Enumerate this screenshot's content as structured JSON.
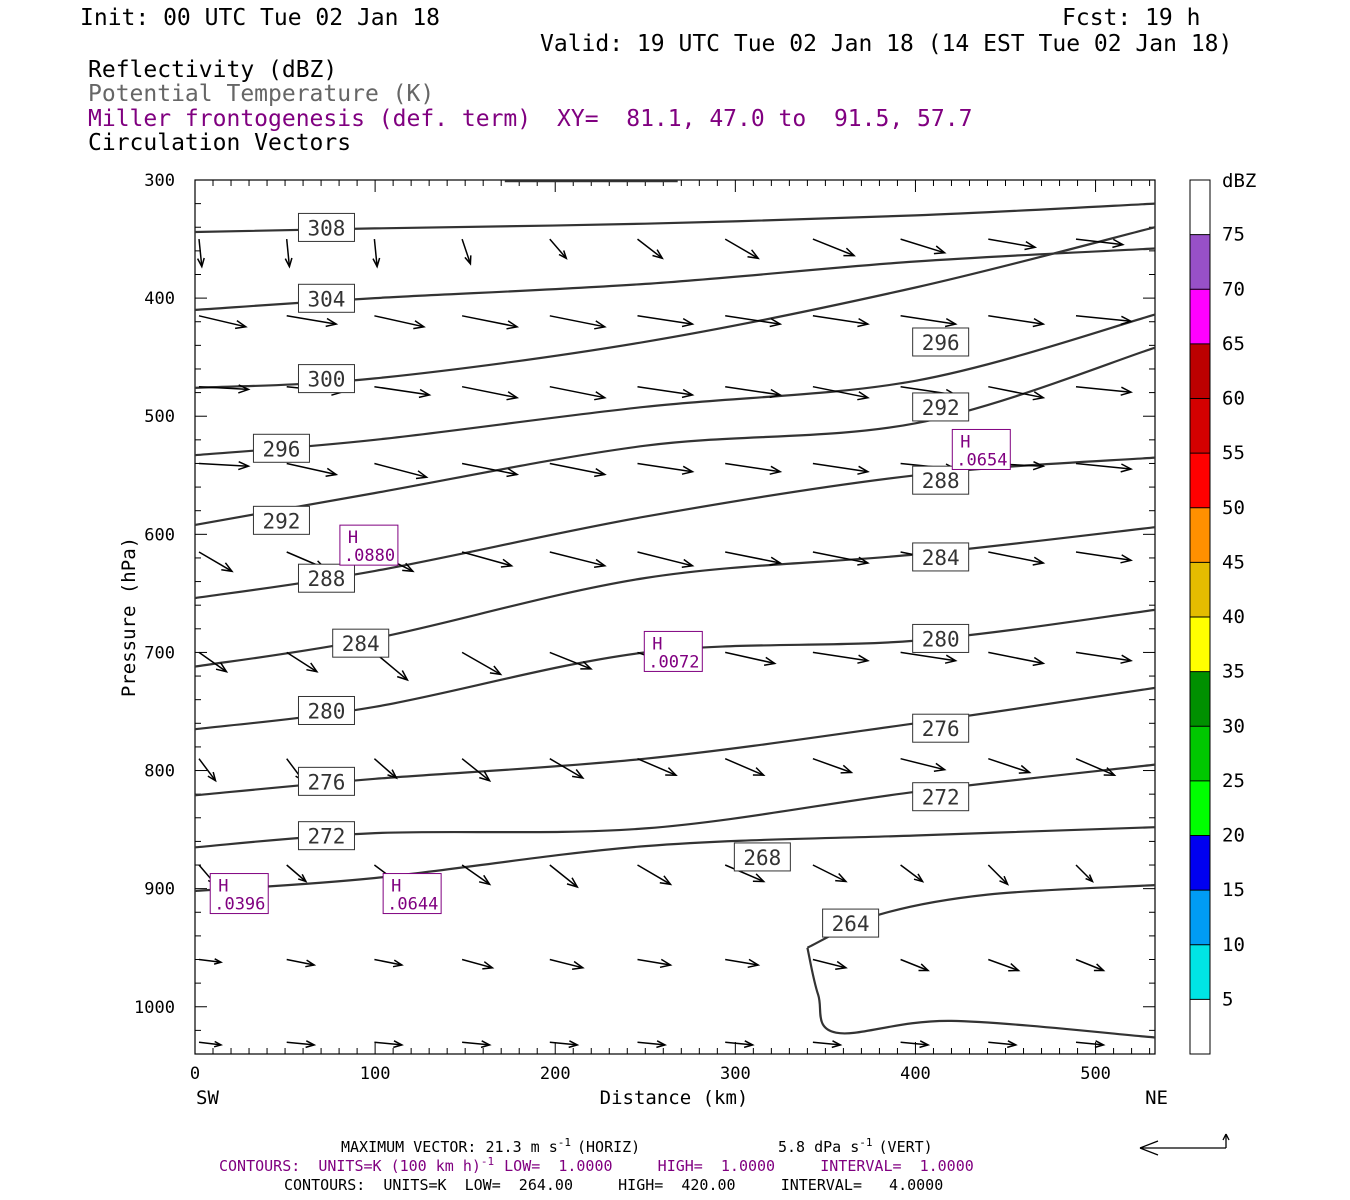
{
  "header": {
    "init": "Init: 00 UTC Tue 02 Jan 18",
    "fcst": "Fcst:   19 h",
    "valid": "Valid: 19 UTC Tue 02 Jan 18 (14 EST Tue 02 Jan 18)",
    "fields": [
      {
        "text": "Reflectivity (dBZ)",
        "color": "#000000"
      },
      {
        "text": "Potential Temperature (K)",
        "color": "#666666"
      },
      {
        "text": "Miller frontogenesis (def. term)",
        "color": "#800080"
      },
      {
        "text": "Circulation Vectors",
        "color": "#000000"
      }
    ],
    "xy": "XY=  81.1, 47.0 to  91.5, 57.7"
  },
  "footer": {
    "max_vector_prefix": "MAXIMUM VECTOR:  21.3 m s",
    "max_vector_horiz": "(HORIZ)",
    "max_vector_vert_prefix": "5.8 dPa s",
    "max_vector_vert": "(VERT)",
    "sup_neg1": "-1",
    "contours1_prefix": "CONTOURS:  UNITS=K (100 km h)",
    "contours1_rest": "LOW=  1.0000     HIGH=  1.0000     INTERVAL=  1.0000",
    "contours2": "CONTOURS:  UNITS=K  LOW=  264.00     HIGH=  420.00     INTERVAL=   4.0000"
  },
  "chart_data": {
    "type": "line",
    "title": "Reflectivity (dBZ), Potential Temperature (K), Miller frontogenesis (def. term), Circulation Vectors",
    "xlabel": "Distance (km)",
    "ylabel": "Pressure (hPa)",
    "x_end_labels": {
      "left": "SW",
      "right": "NE"
    },
    "xlim": [
      0,
      533
    ],
    "ylim": [
      300,
      1040
    ],
    "x_ticks": [
      0,
      100,
      200,
      300,
      400,
      500
    ],
    "y_ticks": [
      300,
      400,
      500,
      600,
      700,
      800,
      900,
      1000
    ],
    "grid": false,
    "isentropes": [
      {
        "theta": 308,
        "points": [
          [
            0,
            344
          ],
          [
            100,
            341
          ],
          [
            250,
            337
          ],
          [
            400,
            330
          ],
          [
            533,
            320
          ]
        ],
        "labels": [
          [
            73,
            341
          ]
        ]
      },
      {
        "theta": 304,
        "points": [
          [
            0,
            410
          ],
          [
            100,
            400
          ],
          [
            250,
            388
          ],
          [
            400,
            369
          ],
          [
            533,
            358
          ]
        ],
        "labels": [
          [
            73,
            401
          ]
        ]
      },
      {
        "theta": 300,
        "points": [
          [
            0,
            476
          ],
          [
            100,
            468
          ],
          [
            250,
            437
          ],
          [
            400,
            391
          ],
          [
            533,
            340
          ]
        ],
        "labels": [
          [
            73,
            469
          ]
        ]
      },
      {
        "theta": 296,
        "points": [
          [
            0,
            533
          ],
          [
            100,
            520
          ],
          [
            250,
            492
          ],
          [
            400,
            470
          ],
          [
            533,
            414
          ]
        ],
        "labels": [
          [
            48,
            528
          ],
          [
            414,
            438
          ]
        ]
      },
      {
        "theta": 292,
        "points": [
          [
            0,
            592
          ],
          [
            100,
            565
          ],
          [
            250,
            525
          ],
          [
            400,
            506
          ],
          [
            533,
            442
          ]
        ],
        "labels": [
          [
            48,
            589
          ],
          [
            414,
            493
          ]
        ]
      },
      {
        "theta": 288,
        "points": [
          [
            0,
            654
          ],
          [
            100,
            631
          ],
          [
            250,
            585
          ],
          [
            400,
            550
          ],
          [
            533,
            535
          ]
        ],
        "labels": [
          [
            73,
            638
          ],
          [
            414,
            555
          ]
        ]
      },
      {
        "theta": 284,
        "points": [
          [
            0,
            712
          ],
          [
            100,
            688
          ],
          [
            250,
            637
          ],
          [
            400,
            617
          ],
          [
            533,
            594
          ]
        ],
        "labels": [
          [
            92,
            693
          ],
          [
            414,
            620
          ]
        ]
      },
      {
        "theta": 280,
        "points": [
          [
            0,
            765
          ],
          [
            100,
            746
          ],
          [
            250,
            700
          ],
          [
            400,
            690
          ],
          [
            533,
            664
          ]
        ],
        "labels": [
          [
            73,
            750
          ],
          [
            414,
            689
          ]
        ]
      },
      {
        "theta": 276,
        "points": [
          [
            0,
            821
          ],
          [
            100,
            807
          ],
          [
            250,
            790
          ],
          [
            400,
            760
          ],
          [
            533,
            730
          ]
        ],
        "labels": [
          [
            73,
            810
          ],
          [
            414,
            765
          ]
        ]
      },
      {
        "theta": 272,
        "points": [
          [
            0,
            865
          ],
          [
            100,
            853
          ],
          [
            250,
            849
          ],
          [
            400,
            818
          ],
          [
            533,
            795
          ]
        ],
        "labels": [
          [
            73,
            856
          ],
          [
            414,
            823
          ]
        ]
      },
      {
        "theta": 268,
        "points": [
          [
            0,
            902
          ],
          [
            100,
            891
          ],
          [
            250,
            864
          ],
          [
            400,
            855
          ],
          [
            533,
            848
          ]
        ],
        "labels": [
          [
            315,
            874
          ]
        ]
      },
      {
        "theta": 264,
        "points": [
          [
            340,
            950
          ],
          [
            380,
            922
          ],
          [
            440,
            905
          ],
          [
            533,
            897
          ]
        ],
        "labels": [
          [
            364,
            930
          ]
        ]
      },
      {
        "theta": 264,
        "points": [
          [
            340,
            950
          ],
          [
            346,
            990
          ],
          [
            356,
            1022
          ],
          [
            420,
            1012
          ],
          [
            533,
            1026
          ]
        ],
        "labels": []
      }
    ],
    "frontogenesis_highs": [
      {
        "label": "H",
        "value": ".0880",
        "x": 96,
        "y": 610
      },
      {
        "label": "H",
        "value": ".0654",
        "x": 436,
        "y": 529
      },
      {
        "label": "H",
        "value": ".0072",
        "x": 265,
        "y": 700
      },
      {
        "label": "H",
        "value": ".0396",
        "x": 24,
        "y": 905
      },
      {
        "label": "H",
        "value": ".0644",
        "x": 120,
        "y": 905
      }
    ],
    "colorbar": {
      "title": "dBZ",
      "levels": [
        5,
        10,
        15,
        20,
        25,
        30,
        35,
        40,
        45,
        50,
        55,
        60,
        65,
        70,
        75
      ],
      "colors": [
        "#ffffff",
        "#00e4e4",
        "#009cf4",
        "#0000f0",
        "#00ff00",
        "#00c800",
        "#009000",
        "#ffff00",
        "#e4bc00",
        "#ff9000",
        "#ff0000",
        "#d40000",
        "#bc0000",
        "#ff00ff",
        "#9850c8",
        "#ffffff"
      ]
    },
    "vector_rows": [
      {
        "p": 350,
        "comps": [
          [
            0.05,
            0.5
          ],
          [
            0.05,
            0.5
          ],
          [
            0.05,
            0.5
          ],
          [
            0.15,
            0.45
          ],
          [
            0.3,
            0.35
          ],
          [
            0.45,
            0.35
          ],
          [
            0.6,
            0.35
          ],
          [
            0.75,
            0.3
          ],
          [
            0.8,
            0.25
          ],
          [
            0.85,
            0.15
          ],
          [
            0.85,
            0.1
          ]
        ]
      },
      {
        "p": 415,
        "comps": [
          [
            0.85,
            0.2
          ],
          [
            0.9,
            0.15
          ],
          [
            0.9,
            0.2
          ],
          [
            1.0,
            0.2
          ],
          [
            1.0,
            0.2
          ],
          [
            1.0,
            0.15
          ],
          [
            1.0,
            0.15
          ],
          [
            1.0,
            0.15
          ],
          [
            1.0,
            0.15
          ],
          [
            1.0,
            0.15
          ],
          [
            1.0,
            0.1
          ]
        ]
      },
      {
        "p": 475,
        "comps": [
          [
            0.9,
            0.05
          ],
          [
            1.0,
            0.1
          ],
          [
            1.0,
            0.15
          ],
          [
            1.0,
            0.2
          ],
          [
            1.0,
            0.2
          ],
          [
            1.0,
            0.15
          ],
          [
            1.0,
            0.15
          ],
          [
            1.0,
            0.2
          ],
          [
            1.0,
            0.15
          ],
          [
            1.0,
            0.2
          ],
          [
            1.0,
            0.1
          ]
        ]
      },
      {
        "p": 540,
        "comps": [
          [
            0.9,
            0.05
          ],
          [
            0.9,
            0.2
          ],
          [
            0.95,
            0.25
          ],
          [
            1.0,
            0.2
          ],
          [
            1.0,
            0.2
          ],
          [
            1.0,
            0.15
          ],
          [
            1.0,
            0.15
          ],
          [
            1.0,
            0.15
          ],
          [
            1.0,
            0.1
          ],
          [
            1.0,
            0.05
          ],
          [
            1.0,
            0.1
          ]
        ]
      },
      {
        "p": 615,
        "comps": [
          [
            0.6,
            0.35
          ],
          [
            0.7,
            0.3
          ],
          [
            0.7,
            0.35
          ],
          [
            0.9,
            0.25
          ],
          [
            1.0,
            0.25
          ],
          [
            1.0,
            0.25
          ],
          [
            1.0,
            0.2
          ],
          [
            1.0,
            0.2
          ],
          [
            1.0,
            0.2
          ],
          [
            1.0,
            0.2
          ],
          [
            1.0,
            0.15
          ]
        ]
      },
      {
        "p": 700,
        "comps": [
          [
            0.5,
            0.35
          ],
          [
            0.55,
            0.35
          ],
          [
            0.6,
            0.5
          ],
          [
            0.7,
            0.4
          ],
          [
            0.75,
            0.3
          ],
          [
            0.85,
            0.3
          ],
          [
            0.9,
            0.2
          ],
          [
            1.0,
            0.15
          ],
          [
            1.0,
            0.15
          ],
          [
            1.0,
            0.2
          ],
          [
            1.0,
            0.15
          ]
        ]
      },
      {
        "p": 790,
        "comps": [
          [
            0.3,
            0.4
          ],
          [
            0.3,
            0.4
          ],
          [
            0.4,
            0.35
          ],
          [
            0.5,
            0.4
          ],
          [
            0.6,
            0.35
          ],
          [
            0.7,
            0.3
          ],
          [
            0.7,
            0.3
          ],
          [
            0.7,
            0.25
          ],
          [
            0.8,
            0.2
          ],
          [
            0.75,
            0.25
          ],
          [
            0.7,
            0.3
          ]
        ]
      },
      {
        "p": 880,
        "comps": [
          [
            0.3,
            0.35
          ],
          [
            0.35,
            0.3
          ],
          [
            0.4,
            0.3
          ],
          [
            0.5,
            0.35
          ],
          [
            0.5,
            0.4
          ],
          [
            0.6,
            0.35
          ],
          [
            0.7,
            0.3
          ],
          [
            0.6,
            0.3
          ],
          [
            0.4,
            0.3
          ],
          [
            0.35,
            0.35
          ],
          [
            0.3,
            0.3
          ]
        ]
      },
      {
        "p": 960,
        "comps": [
          [
            0.4,
            0.05
          ],
          [
            0.5,
            0.1
          ],
          [
            0.5,
            0.1
          ],
          [
            0.55,
            0.15
          ],
          [
            0.6,
            0.15
          ],
          [
            0.6,
            0.1
          ],
          [
            0.6,
            0.1
          ],
          [
            0.6,
            0.15
          ],
          [
            0.5,
            0.2
          ],
          [
            0.55,
            0.2
          ],
          [
            0.5,
            0.2
          ]
        ]
      },
      {
        "p": 1030,
        "comps": [
          [
            0.4,
            0.05
          ],
          [
            0.5,
            0.05
          ],
          [
            0.5,
            0.05
          ],
          [
            0.5,
            0.05
          ],
          [
            0.5,
            0.05
          ],
          [
            0.5,
            0.05
          ],
          [
            0.5,
            0.05
          ],
          [
            0.5,
            0.05
          ],
          [
            0.5,
            0.05
          ],
          [
            0.5,
            0.05
          ],
          [
            0.5,
            0.05
          ]
        ]
      }
    ]
  }
}
